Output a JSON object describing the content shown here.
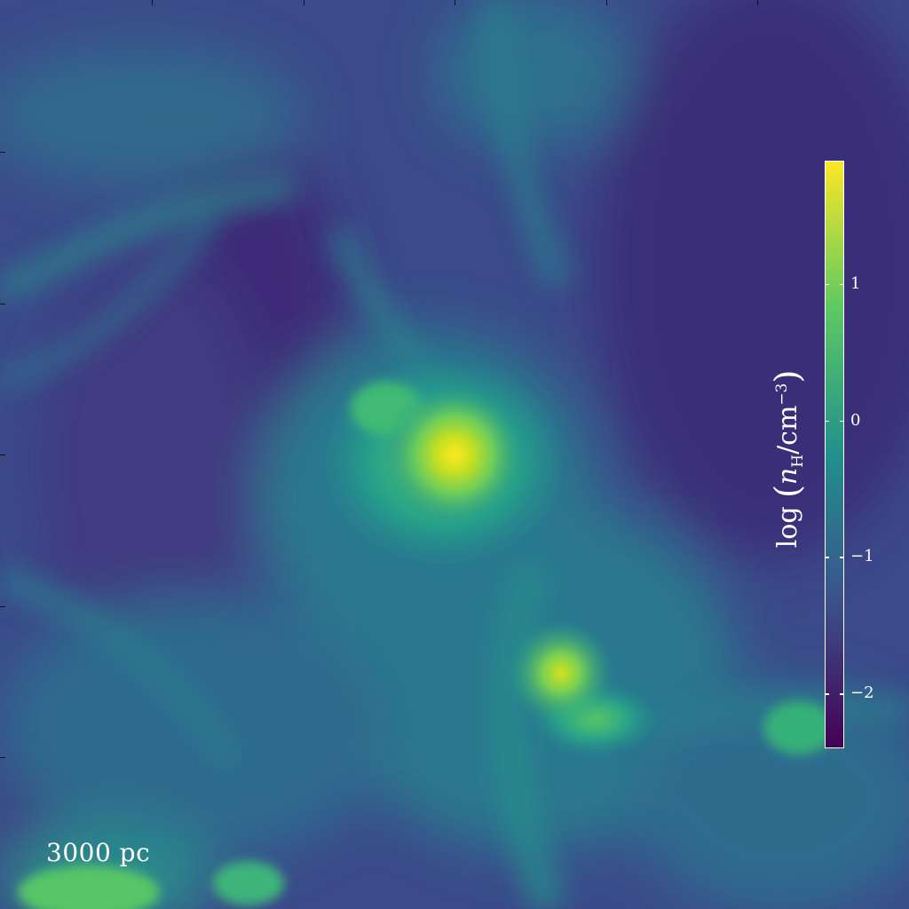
{
  "figure": {
    "scale_label": "3000 pc",
    "colorbar": {
      "label_prefix": "log",
      "label_var": "n",
      "label_sub": "H",
      "label_unit": "/cm",
      "label_exp": "−3",
      "min": -2.4,
      "max": 1.9,
      "ticks": [
        {
          "value": 1,
          "label": "1"
        },
        {
          "value": 0,
          "label": "0"
        },
        {
          "value": -1,
          "label": "−1"
        },
        {
          "value": -2,
          "label": "−2"
        }
      ],
      "colormap": [
        "#440154",
        "#3b528b",
        "#21908d",
        "#5dc963",
        "#fde725"
      ]
    }
  }
}
